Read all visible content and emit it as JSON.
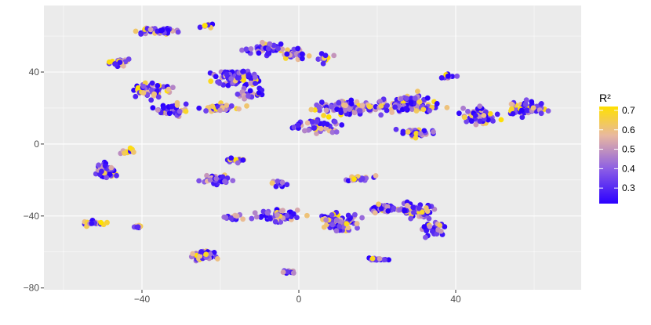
{
  "chart_data": {
    "type": "scatter",
    "title": "",
    "xlabel": "",
    "ylabel": "",
    "xlim": [
      -65,
      72
    ],
    "ylim": [
      -81,
      77
    ],
    "x_ticks": [
      -40,
      0,
      40
    ],
    "y_ticks": [
      -80,
      -40,
      0,
      40
    ],
    "x_tick_labels": [
      "−40",
      "0",
      "40"
    ],
    "y_tick_labels": [
      "−80",
      "−40",
      "0",
      "40"
    ],
    "grid": true,
    "panel_background": "#ebebeb",
    "legend": {
      "title": "R²",
      "position": "right",
      "range": [
        0.22,
        0.72
      ],
      "breaks": [
        0.3,
        0.4,
        0.5,
        0.6,
        0.7
      ],
      "break_labels": [
        "0.3",
        "0.4",
        "0.5",
        "0.6",
        "0.7"
      ],
      "colors": [
        "#2b00ff",
        "#8a5ce6",
        "#e8b8a0",
        "#ffe000"
      ]
    },
    "clusters": [
      {
        "x": -36,
        "y": 63,
        "sx": 6,
        "sy": 3,
        "n": 45
      },
      {
        "x": -23,
        "y": 66,
        "sx": 2,
        "sy": 2,
        "n": 8
      },
      {
        "x": -46,
        "y": 45,
        "sx": 4,
        "sy": 3,
        "n": 25
      },
      {
        "x": -38,
        "y": 30,
        "sx": 6,
        "sy": 5,
        "n": 50
      },
      {
        "x": -33,
        "y": 19,
        "sx": 6,
        "sy": 4,
        "n": 40
      },
      {
        "x": -16,
        "y": 37,
        "sx": 7,
        "sy": 6,
        "n": 90
      },
      {
        "x": -20,
        "y": 20,
        "sx": 6,
        "sy": 3,
        "n": 40
      },
      {
        "x": -8,
        "y": 53,
        "sx": 7,
        "sy": 4,
        "n": 50
      },
      {
        "x": -12,
        "y": 28,
        "sx": 4,
        "sy": 4,
        "n": 30
      },
      {
        "x": -1,
        "y": 50,
        "sx": 4,
        "sy": 4,
        "n": 25
      },
      {
        "x": 7,
        "y": 48,
        "sx": 3,
        "sy": 3,
        "n": 10
      },
      {
        "x": 12,
        "y": 20,
        "sx": 12,
        "sy": 5,
        "n": 110
      },
      {
        "x": 5,
        "y": 10,
        "sx": 8,
        "sy": 4,
        "n": 50
      },
      {
        "x": 28,
        "y": 22,
        "sx": 9,
        "sy": 7,
        "n": 100
      },
      {
        "x": 30,
        "y": 6,
        "sx": 6,
        "sy": 3,
        "n": 35
      },
      {
        "x": 38,
        "y": 38,
        "sx": 3,
        "sy": 2,
        "n": 12
      },
      {
        "x": 46,
        "y": 16,
        "sx": 6,
        "sy": 6,
        "n": 50
      },
      {
        "x": 58,
        "y": 20,
        "sx": 6,
        "sy": 5,
        "n": 60
      },
      {
        "x": -49,
        "y": -15,
        "sx": 4,
        "sy": 5,
        "n": 55
      },
      {
        "x": -43,
        "y": -4,
        "sx": 3,
        "sy": 3,
        "n": 12
      },
      {
        "x": -21,
        "y": -20,
        "sx": 5,
        "sy": 3,
        "n": 40
      },
      {
        "x": -16,
        "y": -9,
        "sx": 4,
        "sy": 2,
        "n": 15
      },
      {
        "x": -5,
        "y": -40,
        "sx": 7,
        "sy": 4,
        "n": 60
      },
      {
        "x": -17,
        "y": -41,
        "sx": 4,
        "sy": 2,
        "n": 20
      },
      {
        "x": -5,
        "y": -22,
        "sx": 3,
        "sy": 2,
        "n": 12
      },
      {
        "x": -52,
        "y": -44,
        "sx": 3,
        "sy": 2,
        "n": 20
      },
      {
        "x": -41,
        "y": -46,
        "sx": 2,
        "sy": 1,
        "n": 10
      },
      {
        "x": -24,
        "y": -62,
        "sx": 4,
        "sy": 3,
        "n": 40
      },
      {
        "x": -2,
        "y": -71,
        "sx": 3,
        "sy": 1,
        "n": 15
      },
      {
        "x": 16,
        "y": -19,
        "sx": 5,
        "sy": 2,
        "n": 20
      },
      {
        "x": 10,
        "y": -43,
        "sx": 6,
        "sy": 6,
        "n": 70
      },
      {
        "x": 22,
        "y": -36,
        "sx": 5,
        "sy": 4,
        "n": 40
      },
      {
        "x": 30,
        "y": -37,
        "sx": 6,
        "sy": 5,
        "n": 70
      },
      {
        "x": 34,
        "y": -47,
        "sx": 4,
        "sy": 5,
        "n": 30
      },
      {
        "x": 20,
        "y": -64,
        "sx": 4,
        "sy": 1,
        "n": 15
      }
    ]
  }
}
